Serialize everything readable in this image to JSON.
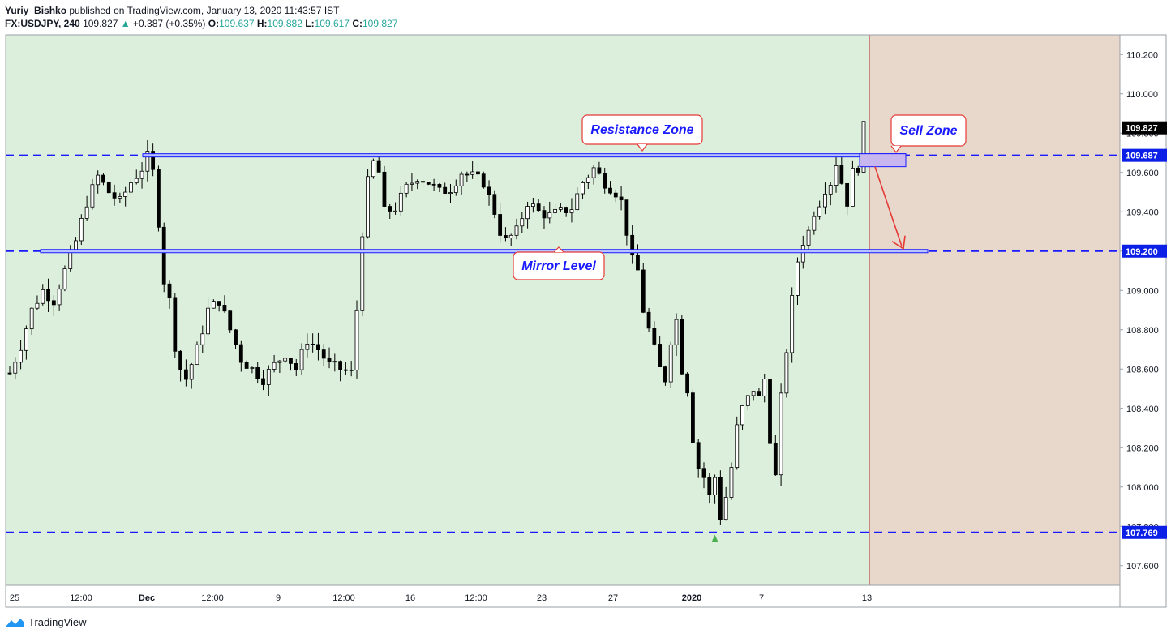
{
  "header": {
    "author": "Yuriy_Bishko",
    "published": "published on TradingView.com, January 13, 2020 11:43:57 IST",
    "symbol": "FX:USDJPY, 240",
    "last": "109.827",
    "change_arrow": "▲",
    "change": "+0.387 (+0.35%)",
    "o_label": "O:",
    "o_value": "109.637",
    "h_label": "H:",
    "h_value": "109.882",
    "l_label": "L:",
    "l_value": "109.617",
    "c_label": "C:",
    "c_value": "109.827"
  },
  "footer": {
    "brand": "TradingView",
    "logo_icon": "tradingview-logo-icon"
  },
  "colors": {
    "bg_zone": "#dcefdc",
    "sell_zone": "#e8d8cc",
    "level_line": "#1a1aff",
    "annotation_border": "#e53935",
    "annotation_text": "#1a1aff",
    "price_tag": "#0b1fe6",
    "candle_up": "#ffffff",
    "candle_down": "#000000"
  },
  "chart_data": {
    "type": "candlestick",
    "title": "",
    "ylim": [
      107.5,
      110.3
    ],
    "y_ticks": [
      "110.200",
      "110.000",
      "109.800",
      "109.600",
      "109.400",
      "109.200",
      "109.000",
      "108.800",
      "108.600",
      "108.400",
      "108.200",
      "108.000",
      "107.800",
      "107.600"
    ],
    "x_ticks": [
      "25",
      "12:00",
      "Dec",
      "12:00",
      "9",
      "12:00",
      "16",
      "12:00",
      "23",
      "27",
      "2020",
      "7",
      "13"
    ],
    "x_ticks_bold": [
      "Dec",
      "2020"
    ],
    "price_tags": [
      {
        "label": "109.827",
        "value": 109.827,
        "style": "last"
      },
      {
        "label": "109.687",
        "value": 109.687,
        "style": "level"
      },
      {
        "label": "109.200",
        "value": 109.2,
        "style": "level"
      },
      {
        "label": "107.769",
        "value": 107.769,
        "style": "level"
      }
    ],
    "horizontal_levels": [
      109.687,
      109.2,
      107.769
    ],
    "annotations": [
      {
        "name": "resistance-zone-label",
        "text": "Resistance Zone"
      },
      {
        "name": "mirror-level-label",
        "text": "Mirror Level"
      },
      {
        "name": "sell-zone-label",
        "text": "Sell Zone"
      }
    ],
    "price_path": [
      [
        0,
        108.58
      ],
      [
        2,
        108.72
      ],
      [
        4,
        108.9
      ],
      [
        6,
        109.0
      ],
      [
        8,
        108.95
      ],
      [
        10,
        109.1
      ],
      [
        12,
        109.25
      ],
      [
        14,
        109.45
      ],
      [
        16,
        109.58
      ],
      [
        18,
        109.5
      ],
      [
        20,
        109.45
      ],
      [
        22,
        109.55
      ],
      [
        24,
        109.62
      ],
      [
        25,
        109.68
      ],
      [
        26,
        109.6
      ],
      [
        27,
        109.35
      ],
      [
        28,
        109.05
      ],
      [
        29,
        108.95
      ],
      [
        30,
        108.72
      ],
      [
        31,
        108.6
      ],
      [
        32,
        108.55
      ],
      [
        34,
        108.7
      ],
      [
        36,
        108.9
      ],
      [
        38,
        108.95
      ],
      [
        40,
        108.8
      ],
      [
        42,
        108.65
      ],
      [
        44,
        108.6
      ],
      [
        46,
        108.55
      ],
      [
        48,
        108.62
      ],
      [
        50,
        108.68
      ],
      [
        52,
        108.6
      ],
      [
        54,
        108.75
      ],
      [
        56,
        108.7
      ],
      [
        58,
        108.62
      ],
      [
        60,
        108.6
      ],
      [
        62,
        108.58
      ],
      [
        63,
        108.9
      ],
      [
        64,
        109.3
      ],
      [
        65,
        109.55
      ],
      [
        66,
        109.65
      ],
      [
        67,
        109.6
      ],
      [
        68,
        109.4
      ],
      [
        70,
        109.42
      ],
      [
        72,
        109.52
      ],
      [
        74,
        109.58
      ],
      [
        76,
        109.55
      ],
      [
        78,
        109.5
      ],
      [
        80,
        109.52
      ],
      [
        82,
        109.6
      ],
      [
        84,
        109.58
      ],
      [
        86,
        109.55
      ],
      [
        88,
        109.4
      ],
      [
        89,
        109.3
      ],
      [
        90,
        109.25
      ],
      [
        92,
        109.3
      ],
      [
        94,
        109.45
      ],
      [
        96,
        109.4
      ],
      [
        98,
        109.38
      ],
      [
        100,
        109.4
      ],
      [
        102,
        109.42
      ],
      [
        104,
        109.55
      ],
      [
        106,
        109.62
      ],
      [
        108,
        109.55
      ],
      [
        110,
        109.5
      ],
      [
        111,
        109.45
      ],
      [
        112,
        109.3
      ],
      [
        113,
        109.15
      ],
      [
        114,
        109.1
      ],
      [
        115,
        108.9
      ],
      [
        116,
        108.8
      ],
      [
        117,
        108.7
      ],
      [
        118,
        108.6
      ],
      [
        119,
        108.55
      ],
      [
        120,
        108.75
      ],
      [
        121,
        108.85
      ],
      [
        122,
        108.6
      ],
      [
        123,
        108.5
      ],
      [
        124,
        108.25
      ],
      [
        125,
        108.1
      ],
      [
        126,
        108.05
      ],
      [
        127,
        107.95
      ],
      [
        128,
        108.05
      ],
      [
        129,
        107.85
      ],
      [
        130,
        107.95
      ],
      [
        131,
        108.1
      ],
      [
        132,
        108.3
      ],
      [
        133,
        108.4
      ],
      [
        134,
        108.45
      ],
      [
        135,
        108.5
      ],
      [
        136,
        108.45
      ],
      [
        137,
        108.55
      ],
      [
        138,
        108.25
      ],
      [
        139,
        108.05
      ],
      [
        140,
        108.45
      ],
      [
        141,
        108.7
      ],
      [
        142,
        108.95
      ],
      [
        143,
        109.15
      ],
      [
        144,
        109.25
      ],
      [
        145,
        109.3
      ],
      [
        146,
        109.4
      ],
      [
        147,
        109.45
      ],
      [
        148,
        109.52
      ],
      [
        149,
        109.55
      ],
      [
        150,
        109.65
      ],
      [
        151,
        109.55
      ],
      [
        152,
        109.45
      ],
      [
        153,
        109.6
      ],
      [
        154,
        109.63
      ],
      [
        155,
        109.83
      ]
    ]
  }
}
